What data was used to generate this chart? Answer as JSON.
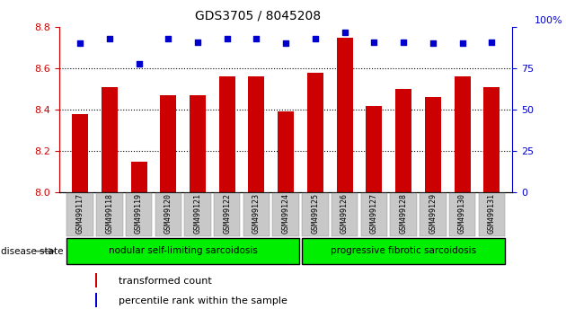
{
  "title": "GDS3705 / 8045208",
  "samples": [
    "GSM499117",
    "GSM499118",
    "GSM499119",
    "GSM499120",
    "GSM499121",
    "GSM499122",
    "GSM499123",
    "GSM499124",
    "GSM499125",
    "GSM499126",
    "GSM499127",
    "GSM499128",
    "GSM499129",
    "GSM499130",
    "GSM499131"
  ],
  "transformed_counts": [
    8.38,
    8.51,
    8.15,
    8.47,
    8.47,
    8.56,
    8.56,
    8.39,
    8.58,
    8.75,
    8.42,
    8.5,
    8.46,
    8.56,
    8.51
  ],
  "percentile_ranks": [
    90,
    93,
    78,
    93,
    91,
    93,
    93,
    90,
    93,
    97,
    91,
    91,
    90,
    90,
    91
  ],
  "ylim_left": [
    8.0,
    8.8
  ],
  "ylim_right": [
    0,
    100
  ],
  "yticks_left": [
    8.0,
    8.2,
    8.4,
    8.6,
    8.8
  ],
  "yticks_right": [
    0,
    25,
    50,
    75,
    100
  ],
  "bar_color": "#cc0000",
  "dot_color": "#0000cc",
  "group1_label": "nodular self-limiting sarcoidosis",
  "group2_label": "progressive fibrotic sarcoidosis",
  "group1_count": 8,
  "group2_count": 7,
  "disease_state_label": "disease state",
  "legend_bar_label": "transformed count",
  "legend_dot_label": "percentile rank within the sample",
  "group_bg_color": "#00ee00",
  "tick_area_bg": "#c8c8c8",
  "title_fontsize": 10,
  "tick_fontsize": 8,
  "label_fontsize": 7.5,
  "legend_fontsize": 8
}
